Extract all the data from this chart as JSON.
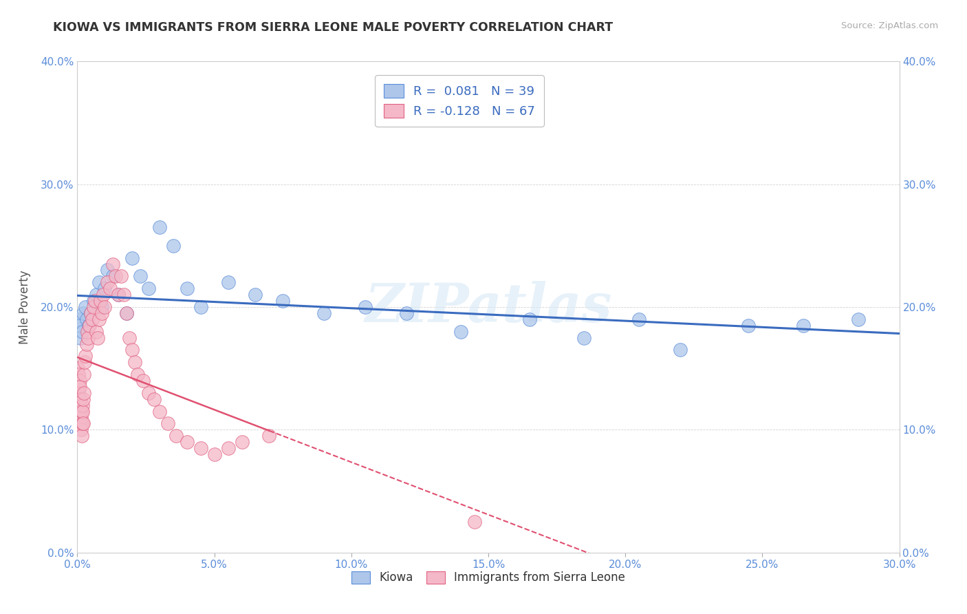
{
  "title": "KIOWA VS IMMIGRANTS FROM SIERRA LEONE MALE POVERTY CORRELATION CHART",
  "source": "Source: ZipAtlas.com",
  "xlabel_vals": [
    0,
    5,
    10,
    15,
    20,
    25,
    30
  ],
  "ylabel_vals": [
    0,
    10,
    20,
    30,
    40
  ],
  "xlim": [
    0,
    30
  ],
  "ylim": [
    0,
    40
  ],
  "ylabel": "Male Poverty",
  "legend1_label": "Kiowa",
  "legend2_label": "Immigrants from Sierra Leone",
  "r1": 0.081,
  "n1": 39,
  "r2": -0.128,
  "n2": 67,
  "blue_color": "#adc6ea",
  "pink_color": "#f4b8c8",
  "blue_edge_color": "#5b8dd9",
  "pink_edge_color": "#e06080",
  "blue_line_color": "#3a6bbf",
  "pink_line_color": "#e05070",
  "watermark": "ZIPatlas",
  "background_color": "#ffffff",
  "kiowa_x": [
    0.05,
    0.08,
    0.12,
    0.18,
    0.22,
    0.28,
    0.35,
    0.42,
    0.5,
    0.6,
    0.7,
    0.8,
    0.9,
    1.0,
    1.1,
    1.3,
    1.5,
    1.8,
    2.0,
    2.3,
    2.6,
    3.0,
    3.5,
    4.0,
    4.5,
    5.5,
    6.5,
    7.5,
    9.0,
    10.5,
    12.0,
    14.0,
    16.5,
    18.5,
    20.5,
    22.0,
    24.5,
    26.5,
    28.5
  ],
  "kiowa_y": [
    19.0,
    18.5,
    17.5,
    18.0,
    19.5,
    20.0,
    19.0,
    18.5,
    19.5,
    20.5,
    21.0,
    22.0,
    20.0,
    21.5,
    23.0,
    22.5,
    21.0,
    19.5,
    24.0,
    22.5,
    21.5,
    26.5,
    25.0,
    21.5,
    20.0,
    22.0,
    21.0,
    20.5,
    19.5,
    20.0,
    19.5,
    18.0,
    19.0,
    17.5,
    19.0,
    16.5,
    18.5,
    18.5,
    19.0
  ],
  "sierra_x": [
    0.02,
    0.03,
    0.04,
    0.05,
    0.06,
    0.07,
    0.08,
    0.08,
    0.09,
    0.1,
    0.1,
    0.11,
    0.12,
    0.13,
    0.14,
    0.15,
    0.16,
    0.17,
    0.18,
    0.19,
    0.2,
    0.21,
    0.22,
    0.23,
    0.25,
    0.27,
    0.3,
    0.33,
    0.37,
    0.4,
    0.45,
    0.5,
    0.55,
    0.6,
    0.65,
    0.7,
    0.75,
    0.8,
    0.85,
    0.9,
    0.95,
    1.0,
    1.1,
    1.2,
    1.3,
    1.4,
    1.5,
    1.6,
    1.7,
    1.8,
    1.9,
    2.0,
    2.1,
    2.2,
    2.4,
    2.6,
    2.8,
    3.0,
    3.3,
    3.6,
    4.0,
    4.5,
    5.0,
    5.5,
    6.0,
    7.0,
    14.5
  ],
  "sierra_y": [
    15.0,
    14.5,
    13.5,
    13.0,
    12.5,
    12.0,
    11.5,
    14.0,
    11.0,
    10.5,
    13.5,
    12.5,
    11.5,
    10.5,
    11.0,
    10.0,
    9.5,
    11.5,
    12.0,
    10.5,
    11.5,
    10.5,
    12.5,
    13.0,
    14.5,
    15.5,
    16.0,
    17.0,
    18.0,
    17.5,
    18.5,
    19.5,
    19.0,
    20.0,
    20.5,
    18.0,
    17.5,
    19.0,
    20.5,
    19.5,
    21.0,
    20.0,
    22.0,
    21.5,
    23.5,
    22.5,
    21.0,
    22.5,
    21.0,
    19.5,
    17.5,
    16.5,
    15.5,
    14.5,
    14.0,
    13.0,
    12.5,
    11.5,
    10.5,
    9.5,
    9.0,
    8.5,
    8.0,
    8.5,
    9.0,
    9.5,
    2.5
  ]
}
